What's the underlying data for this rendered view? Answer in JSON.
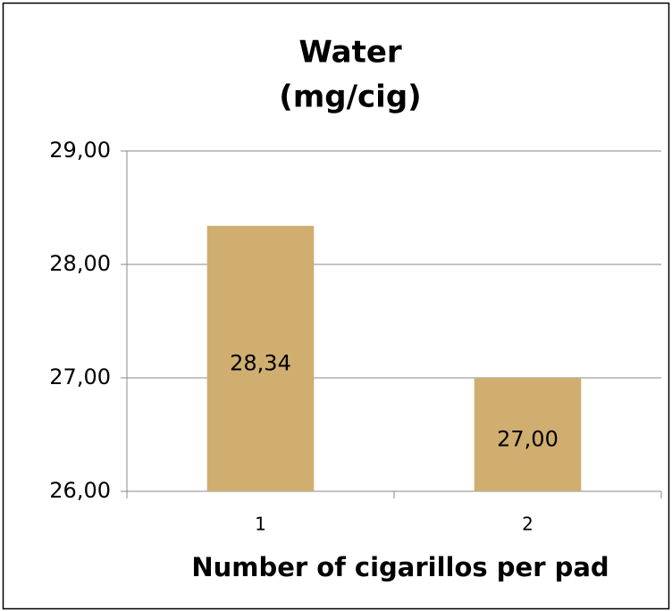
{
  "chart_data": {
    "type": "bar",
    "title": [
      "Water",
      "(mg/cig)"
    ],
    "x_label": "Number of cigarillos per pad",
    "categories": [
      "1",
      "2"
    ],
    "values": [
      28.34,
      27.0
    ],
    "value_labels": [
      "28,34",
      "27,00"
    ],
    "color": "#cfae70",
    "ylim": [
      26,
      29
    ],
    "yticks": [
      {
        "value": 26,
        "label": "26,00"
      },
      {
        "value": 27,
        "label": "27,00"
      },
      {
        "value": 28,
        "label": "28,00"
      },
      {
        "value": 29,
        "label": "29,00"
      }
    ],
    "grid": true
  }
}
